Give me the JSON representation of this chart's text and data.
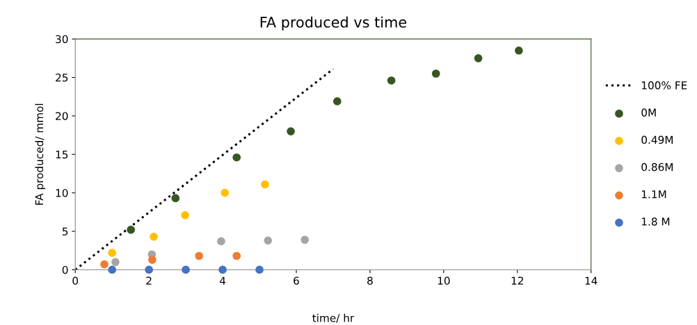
{
  "chart_data": {
    "type": "scatter",
    "title": "FA produced vs time",
    "xlabel": "time/ hr",
    "ylabel": "FA produced/ mmol",
    "xlim": [
      0,
      14
    ],
    "xticks": [
      0,
      2,
      4,
      6,
      8,
      10,
      12,
      14
    ],
    "ylim": [
      0,
      30
    ],
    "yticks": [
      0,
      5,
      10,
      15,
      20,
      25,
      30
    ],
    "grid": false,
    "legend": "right",
    "marker": "circle",
    "line_style": "dotted",
    "series": [
      {
        "name": "100% FE",
        "type": "line",
        "marker": "none",
        "color": "#000000",
        "x": [
          0,
          7
        ],
        "values": [
          0,
          26.1
        ]
      },
      {
        "name": "0M",
        "color": "#375623",
        "x": [
          1.51,
          2.72,
          4.38,
          5.85,
          7.11,
          8.58,
          9.79,
          10.94,
          12.04
        ],
        "values": [
          5.2,
          9.3,
          14.6,
          18.0,
          21.9,
          24.6,
          25.5,
          27.5,
          28.5
        ]
      },
      {
        "name": "0.49M",
        "color": "#ffc000",
        "x": [
          1.0,
          2.13,
          2.98,
          4.06,
          5.15
        ],
        "values": [
          2.2,
          4.3,
          7.1,
          10.0,
          11.1
        ]
      },
      {
        "name": "0.86M",
        "color": "#a5a5a5",
        "x": [
          1.09,
          2.08,
          3.96,
          5.23,
          6.23
        ],
        "values": [
          1.0,
          2.0,
          3.7,
          3.8,
          3.9
        ]
      },
      {
        "name": "1.1M",
        "color": "#ed7d31",
        "x": [
          0.79,
          2.09,
          3.36,
          4.38
        ],
        "values": [
          0.7,
          1.3,
          1.8,
          1.8
        ]
      },
      {
        "name": "1.8 M",
        "color": "#4472c4",
        "x": [
          1,
          2,
          3,
          4,
          5
        ],
        "values": [
          0,
          0,
          0,
          0,
          0
        ]
      }
    ]
  }
}
